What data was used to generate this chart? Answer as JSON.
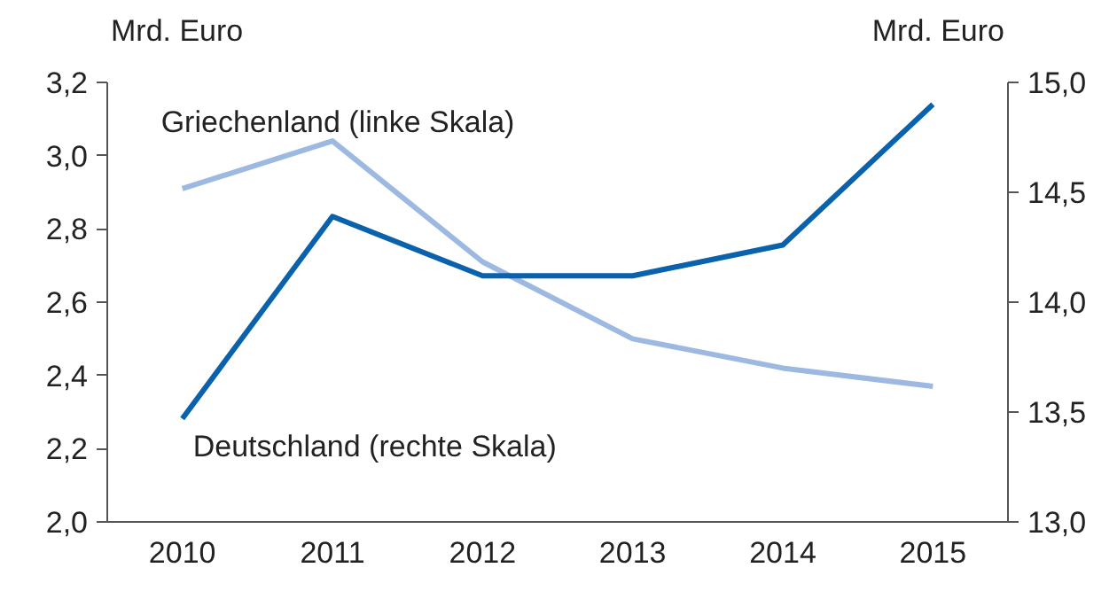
{
  "chart_data": {
    "type": "line",
    "ylabel": "Mrd. Euro",
    "y2label": "Mrd. Euro",
    "categories": [
      "2010",
      "2011",
      "2012",
      "2013",
      "2014",
      "2015"
    ],
    "series": [
      {
        "name": "Griechenland (linke Skala)",
        "color": "#9db9e2",
        "values": [
          2.91,
          3.04,
          2.71,
          2.5,
          2.42,
          2.37
        ]
      },
      {
        "name": "Deutschland (rechte Skala)",
        "color": "#0a62ad",
        "axis": "y2",
        "values": [
          13.47,
          14.39,
          14.12,
          14.12,
          14.26,
          14.9
        ]
      }
    ],
    "ylim": [
      2.0,
      3.2
    ],
    "yticks": [
      {
        "value": 2.0,
        "label": "2,0"
      },
      {
        "value": 2.2,
        "label": "2,2"
      },
      {
        "value": 2.4,
        "label": "2,4"
      },
      {
        "value": 2.6,
        "label": "2,6"
      },
      {
        "value": 2.8,
        "label": "2,8"
      },
      {
        "value": 3.0,
        "label": "3,0"
      },
      {
        "value": 3.2,
        "label": "3,2"
      }
    ],
    "y2lim": [
      13.0,
      15.0
    ],
    "y2ticks": [
      {
        "value": 13.0,
        "label": "13,0"
      },
      {
        "value": 13.5,
        "label": "13,5"
      },
      {
        "value": 14.0,
        "label": "14,0"
      },
      {
        "value": 14.5,
        "label": "14,5"
      },
      {
        "value": 15.0,
        "label": "15,0"
      }
    ],
    "grid": false,
    "legend": false,
    "marker": "none",
    "line_style": "solid"
  }
}
